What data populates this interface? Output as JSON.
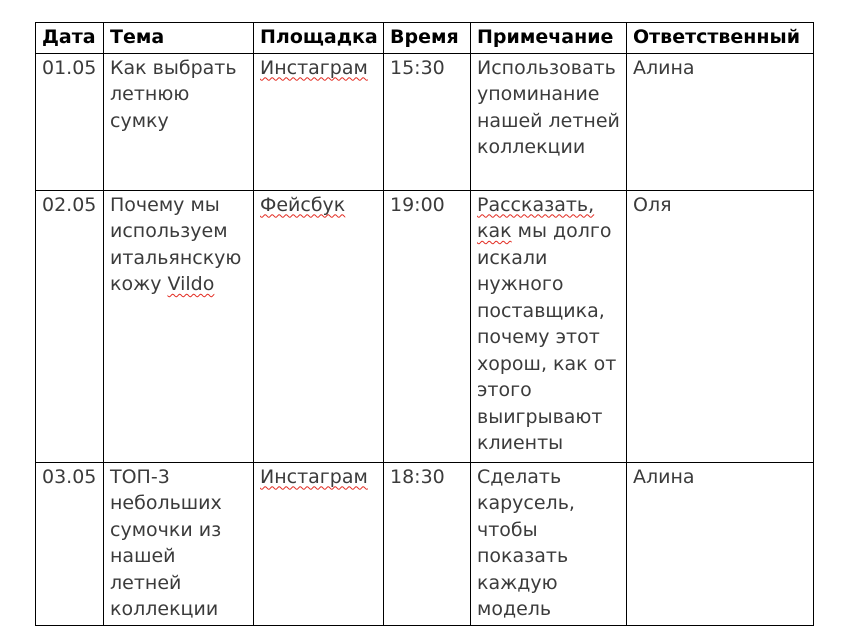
{
  "colors": {
    "spell_red": "#e2291f",
    "border": "#000000",
    "body_text": "#3b3b3b",
    "header_text": "#000000",
    "page_background": "#ffffff"
  },
  "table": {
    "headers": [
      "Дата",
      "Тема",
      "Площадка",
      "Время",
      "Примечание",
      "Ответственный"
    ],
    "rows": [
      {
        "date": "01.05",
        "topic": [
          {
            "text": "Как выбрать летнюю сумку"
          }
        ],
        "platform": [
          {
            "text": "Инстаграм",
            "misspelled": true
          }
        ],
        "time": "15:30",
        "note": [
          {
            "text": "Использовать упоминание нашей летней коллекции"
          }
        ],
        "owner": "Алина"
      },
      {
        "date": "02.05",
        "topic": [
          {
            "text": "Почему мы используем итальянскую кожу "
          },
          {
            "text": "Vildo",
            "misspelled": true
          }
        ],
        "platform": [
          {
            "text": "Фейсбук",
            "misspelled": true
          }
        ],
        "time": "19:00",
        "note": [
          {
            "text": "Рассказать,",
            "misspelled": true
          },
          {
            "text": " "
          },
          {
            "text": "как",
            "misspelled": true
          },
          {
            "text": " мы долго искали нужного поставщика, почему этот хорош, как от этого выигрывают клиенты"
          }
        ],
        "owner": "Оля"
      },
      {
        "date": "03.05",
        "topic": [
          {
            "text": "ТОП-3 небольших сумочки из нашей летней коллекции"
          }
        ],
        "platform": [
          {
            "text": "Инстаграм",
            "misspelled": true
          }
        ],
        "time": "18:30",
        "note": [
          {
            "text": "Сделать карусель, чтобы показать каждую модель"
          }
        ],
        "owner": "Алина"
      }
    ]
  }
}
